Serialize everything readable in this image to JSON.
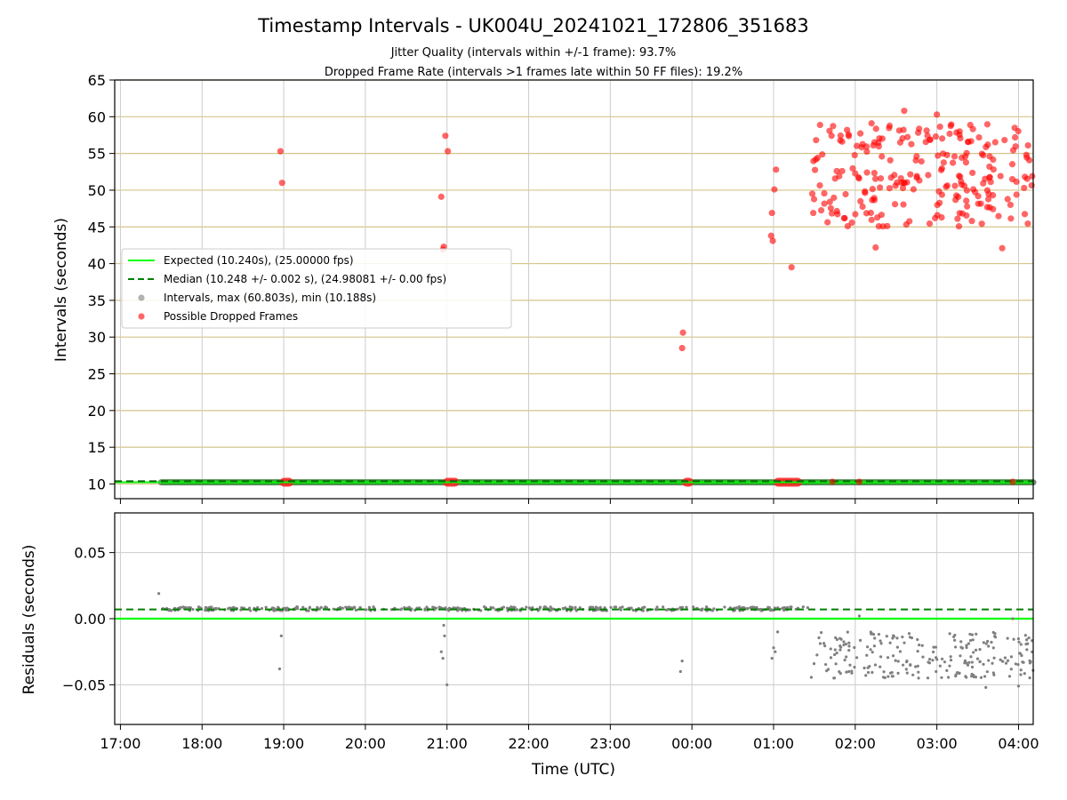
{
  "chart_data": {
    "title": "Timestamp Intervals - UK004U_20241021_172806_351683",
    "subtitles": [
      "Jitter Quality (intervals within +/-1 frame): 93.7%",
      "Dropped Frame Rate (intervals >1 frames late within 50 FF files): 19.2%"
    ],
    "xlabel": "Time (UTC)",
    "x_ticks": [
      "17:00",
      "18:00",
      "19:00",
      "20:00",
      "21:00",
      "22:00",
      "23:00",
      "00:00",
      "01:00",
      "02:00",
      "03:00",
      "04:00"
    ],
    "x_range_hours": [
      16.93,
      28.18
    ],
    "charts": [
      {
        "type": "scatter",
        "ylabel": "Intervals (seconds)",
        "ylim": [
          8,
          65
        ],
        "y_ticks": [
          10,
          15,
          20,
          25,
          30,
          35,
          40,
          45,
          50,
          55,
          60,
          65
        ],
        "grid": true,
        "legend_position": "center-left",
        "expected": 10.24,
        "median": 10.248,
        "legend": [
          {
            "label": "Expected (10.240s), (25.00000 fps)",
            "color": "#00ff00",
            "style": "solid-line"
          },
          {
            "label": "Median (10.248 +/- 0.002 s), (24.98081 +/- 0.00 fps)",
            "color": "#008000",
            "style": "dashed-line"
          },
          {
            "label": "Intervals, max (60.803s), min (10.188s)",
            "color": "#808080",
            "style": "marker"
          },
          {
            "label": "Possible Dropped Frames",
            "color": "#ff0000",
            "style": "marker"
          }
        ],
        "normal_band_hours": [
          17.5,
          28.18
        ],
        "dropped_clusters_hours": [
          [
            18.95,
            19.12
          ],
          [
            20.95,
            21.15
          ],
          [
            23.88,
            24.02
          ],
          [
            25.0,
            25.35
          ]
        ],
        "dropped_points": [
          {
            "t": 18.96,
            "v": 55.3
          },
          {
            "t": 18.98,
            "v": 51.0
          },
          {
            "t": 20.93,
            "v": 49.1
          },
          {
            "t": 20.96,
            "v": 42.3
          },
          {
            "t": 20.95,
            "v": 41.9
          },
          {
            "t": 20.98,
            "v": 57.4
          },
          {
            "t": 21.01,
            "v": 55.3
          },
          {
            "t": 23.89,
            "v": 30.6
          },
          {
            "t": 23.88,
            "v": 28.5
          },
          {
            "t": 24.97,
            "v": 43.8
          },
          {
            "t": 24.99,
            "v": 43.1
          },
          {
            "t": 24.98,
            "v": 46.9
          },
          {
            "t": 25.01,
            "v": 50.1
          },
          {
            "t": 25.03,
            "v": 52.8
          },
          {
            "t": 25.22,
            "v": 39.5
          },
          {
            "t": 25.72,
            "v": 10.3
          },
          {
            "t": 26.05,
            "v": 10.3
          },
          {
            "t": 27.93,
            "v": 10.3
          }
        ],
        "dense_region": {
          "t_range": [
            25.45,
            28.18
          ],
          "v_range": [
            42,
            61
          ],
          "count": 230,
          "highlights": [
            {
              "t": 26.6,
              "v": 60.8
            },
            {
              "t": 27.0,
              "v": 60.3
            },
            {
              "t": 26.2,
              "v": 59.1
            },
            {
              "t": 27.8,
              "v": 42.1
            },
            {
              "t": 26.25,
              "v": 42.2
            },
            {
              "t": 25.9,
              "v": 58.2
            }
          ]
        }
      },
      {
        "type": "scatter",
        "ylabel": "Residuals (seconds)",
        "ylim": [
          -0.08,
          0.08
        ],
        "y_ticks": [
          0.05,
          0.0,
          -0.05
        ],
        "y_tick_labels": [
          "0.05",
          "0.00",
          "−0.05"
        ],
        "grid": true,
        "expected_line": 0.0,
        "median_line": 0.007,
        "band": {
          "t_range": [
            17.5,
            25.45
          ],
          "v": 0.0075
        },
        "points": [
          {
            "t": 17.47,
            "v": 0.019
          },
          {
            "t": 18.97,
            "v": -0.013
          },
          {
            "t": 18.95,
            "v": -0.038
          },
          {
            "t": 20.93,
            "v": -0.025
          },
          {
            "t": 20.95,
            "v": -0.03
          },
          {
            "t": 20.97,
            "v": -0.013
          },
          {
            "t": 21.0,
            "v": -0.05
          },
          {
            "t": 20.96,
            "v": -0.005
          },
          {
            "t": 23.88,
            "v": -0.032
          },
          {
            "t": 23.86,
            "v": -0.04
          },
          {
            "t": 24.98,
            "v": -0.03
          },
          {
            "t": 25.0,
            "v": -0.022
          },
          {
            "t": 25.02,
            "v": -0.025
          },
          {
            "t": 25.05,
            "v": -0.01
          },
          {
            "t": 26.05,
            "v": 0.002
          },
          {
            "t": 27.6,
            "v": -0.052
          },
          {
            "t": 28.0,
            "v": -0.051
          },
          {
            "t": 27.93,
            "v": 0.0
          }
        ],
        "dense_region": {
          "t_range": [
            25.45,
            28.18
          ],
          "v_range": [
            -0.045,
            -0.01
          ],
          "count": 230
        }
      }
    ]
  }
}
